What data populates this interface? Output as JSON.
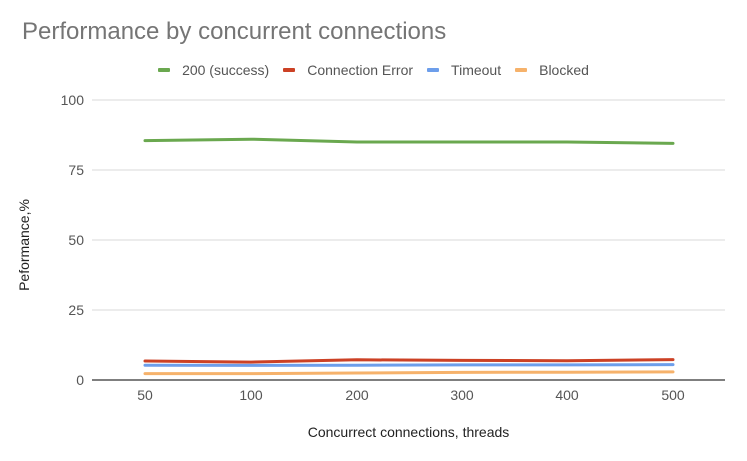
{
  "chart_data": {
    "type": "line",
    "title": "Performance by concurrent connections",
    "xlabel": "Concurrect connections, threads",
    "ylabel": "Peformance,%",
    "categories": [
      "50",
      "100",
      "200",
      "300",
      "400",
      "500"
    ],
    "ylim": [
      0,
      100
    ],
    "yticks": [
      "0",
      "25",
      "50",
      "75",
      "100"
    ],
    "grid": true,
    "legend_position": "top",
    "series": [
      {
        "name": "200 (success)",
        "color": "#6aa84f",
        "values": [
          85.5,
          86.0,
          85.0,
          85.0,
          85.0,
          84.5
        ]
      },
      {
        "name": "Connection Error",
        "color": "#cc4125",
        "values": [
          6.8,
          6.4,
          7.2,
          7.0,
          6.9,
          7.3
        ]
      },
      {
        "name": "Timeout",
        "color": "#6d9eeb",
        "values": [
          5.3,
          5.2,
          5.3,
          5.4,
          5.4,
          5.5
        ]
      },
      {
        "name": "Blocked",
        "color": "#f6b26b",
        "values": [
          2.3,
          2.3,
          2.5,
          2.7,
          2.8,
          2.9
        ]
      }
    ]
  }
}
